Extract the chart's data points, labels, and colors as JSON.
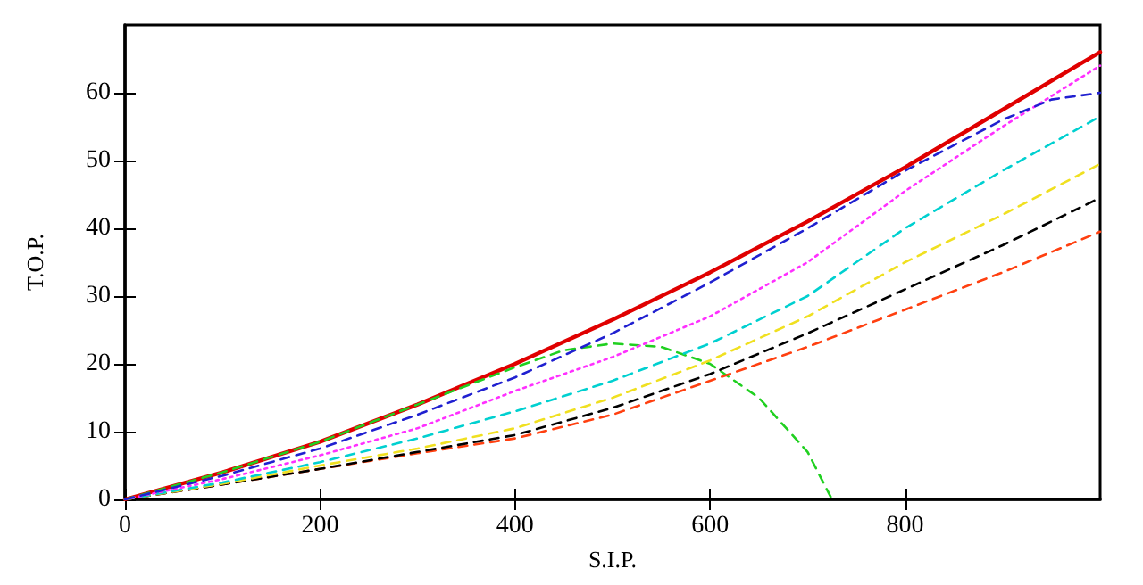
{
  "chart_data": {
    "type": "line",
    "xlabel": "S.I.P.",
    "ylabel": "T.O.P.",
    "xlim": [
      0,
      1000
    ],
    "xticks": [
      0,
      200,
      400,
      600,
      800
    ],
    "ylim": [
      0,
      70
    ],
    "yticks": [
      0,
      10,
      20,
      30,
      40,
      50,
      60
    ],
    "grid": false,
    "marker": "none",
    "x": [
      0,
      100,
      200,
      300,
      400,
      500,
      600,
      700,
      800,
      900,
      1000
    ],
    "series": [
      {
        "color": "#e00000",
        "line_style": "solid",
        "values": [
          0,
          4,
          8.5,
          14,
          20,
          26.5,
          33.5,
          41,
          49,
          57.5,
          66
        ]
      },
      {
        "color": "#2020d0",
        "line_style": "dashed",
        "x": [
          0,
          100,
          200,
          300,
          400,
          500,
          600,
          700,
          800,
          900,
          950,
          1000
        ],
        "values": [
          0,
          3.5,
          7.5,
          12.5,
          18,
          24.5,
          32,
          40,
          48.5,
          56,
          59,
          60
        ]
      },
      {
        "color": "#ff30ff",
        "line_style": "dotted",
        "values": [
          0,
          3,
          6.5,
          10.5,
          16,
          21,
          27,
          35,
          45.5,
          55,
          64
        ]
      },
      {
        "color": "#00d0d0",
        "line_style": "dashed",
        "values": [
          0,
          2.5,
          5.5,
          9,
          13,
          17.5,
          23,
          30,
          40,
          48.5,
          56.5
        ]
      },
      {
        "color": "#f0e020",
        "line_style": "dashed",
        "values": [
          0,
          2.3,
          5,
          7.5,
          10.5,
          15,
          20.5,
          27,
          35,
          42,
          49.5
        ]
      },
      {
        "color": "#000000",
        "line_style": "dashed",
        "values": [
          0,
          2.2,
          4.5,
          7,
          9.5,
          13.5,
          18.5,
          24.5,
          31,
          37.5,
          44.5
        ]
      },
      {
        "color": "#ff4010",
        "line_style": "dashed",
        "values": [
          0,
          2.2,
          4.5,
          6.8,
          9,
          12.5,
          17.5,
          22.5,
          28,
          33.5,
          39.5
        ]
      },
      {
        "color": "#20d020",
        "line_style": "dashed",
        "x": [
          0,
          100,
          200,
          300,
          400,
          450,
          500,
          550,
          600,
          650,
          700,
          725
        ],
        "values": [
          0,
          4,
          8.5,
          14,
          19.5,
          22,
          23,
          22.5,
          20,
          15,
          7,
          0
        ]
      }
    ]
  }
}
